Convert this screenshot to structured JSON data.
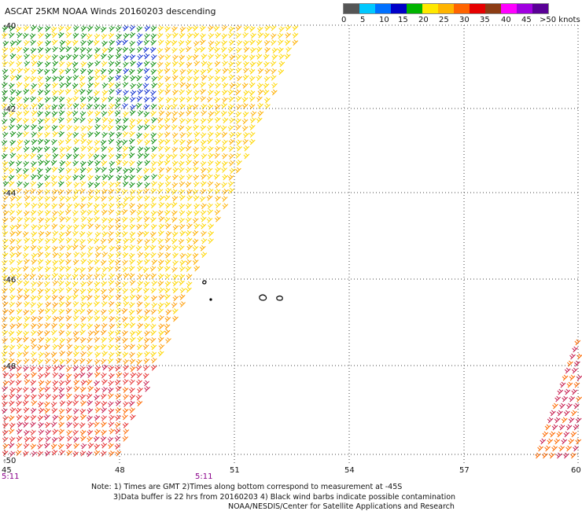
{
  "title": "ASCAT 25KM NOAA Winds 20160203 descending",
  "legend": {
    "labels": [
      "0",
      "5",
      "10",
      "15",
      "20",
      "25",
      "30",
      "35",
      "40",
      "45",
      ">50 knots"
    ],
    "colors": [
      "#555555",
      "#00c8ff",
      "#0070ff",
      "#0000c8",
      "#00b400",
      "#ffe800",
      "#ffb400",
      "#ff6400",
      "#e60000",
      "#8c3c14",
      "#ff00ff",
      "#a000e0",
      "#5a0096"
    ]
  },
  "map": {
    "lat_labels": [
      "-40",
      "-42",
      "-44",
      "-46",
      "-48",
      "-50"
    ],
    "lon_labels": [
      "45",
      "48",
      "51",
      "54",
      "57",
      "60"
    ],
    "time_labels": [
      "5:11",
      "5:11"
    ]
  },
  "notes": {
    "line1": "Note: 1) Times are GMT 2)Times along bottom correspond to measurement at -45S",
    "line2": "3)Data buffer is 22 hrs from 20160203 4) Black wind barbs indicate possible contamination",
    "line3": "NOAA/NESDIS/Center for Satellite Applications and Research"
  }
}
